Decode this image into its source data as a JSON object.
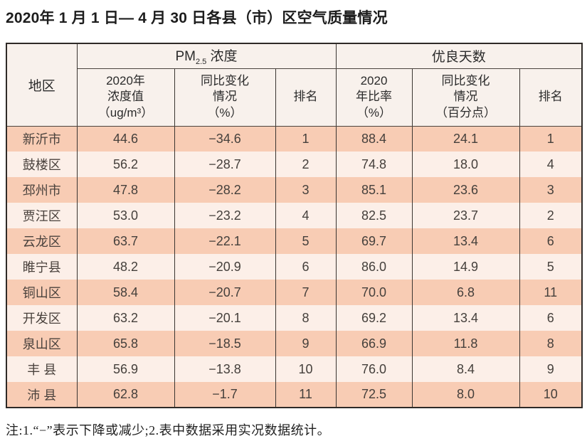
{
  "page": {
    "title": "2020年 1 月 1 日— 4 月 30 日各县（市）区空气质量情况",
    "note": "注:1.“−”表示下降或减少;2.表中数据采用实况数据统计。"
  },
  "colors": {
    "row_odd_bg": "#f8ccb4",
    "row_even_bg": "#fcefe8",
    "header_bg": "#f8f1ec",
    "border": "#3a3531",
    "text": "#45403c"
  },
  "table": {
    "header": {
      "region": "地区",
      "pm25_group": {
        "prefix": "PM",
        "sub": "2.5",
        "suffix": " 浓度"
      },
      "good_days_group": "优良天数",
      "pm25_value": "2020年\n浓度值\n（ug/m³）",
      "pm25_change": "同比变化\n情况\n（%）",
      "pm25_rank": "排名",
      "good_ratio": "2020\n年比率\n（%）",
      "good_change": "同比变化\n情况\n（百分点）",
      "good_rank": "排名"
    },
    "rows": [
      {
        "region": "新沂市",
        "pm25_value": "44.6",
        "pm25_change": "−34.6",
        "pm25_rank": "1",
        "good_ratio": "88.4",
        "good_change": "24.1",
        "good_rank": "1"
      },
      {
        "region": "鼓楼区",
        "pm25_value": "56.2",
        "pm25_change": "−28.7",
        "pm25_rank": "2",
        "good_ratio": "74.8",
        "good_change": "18.0",
        "good_rank": "4"
      },
      {
        "region": "邳州市",
        "pm25_value": "47.8",
        "pm25_change": "−28.2",
        "pm25_rank": "3",
        "good_ratio": "85.1",
        "good_change": "23.6",
        "good_rank": "3"
      },
      {
        "region": "贾汪区",
        "pm25_value": "53.0",
        "pm25_change": "−23.2",
        "pm25_rank": "4",
        "good_ratio": "82.5",
        "good_change": "23.7",
        "good_rank": "2"
      },
      {
        "region": "云龙区",
        "pm25_value": "63.7",
        "pm25_change": "−22.1",
        "pm25_rank": "5",
        "good_ratio": "69.7",
        "good_change": "13.4",
        "good_rank": "6"
      },
      {
        "region": "睢宁县",
        "pm25_value": "48.2",
        "pm25_change": "−20.9",
        "pm25_rank": "6",
        "good_ratio": "86.0",
        "good_change": "14.9",
        "good_rank": "5"
      },
      {
        "region": "铜山区",
        "pm25_value": "58.4",
        "pm25_change": "−20.7",
        "pm25_rank": "7",
        "good_ratio": "70.0",
        "good_change": "6.8",
        "good_rank": "11"
      },
      {
        "region": "开发区",
        "pm25_value": "63.2",
        "pm25_change": "−20.1",
        "pm25_rank": "8",
        "good_ratio": "69.2",
        "good_change": "13.4",
        "good_rank": "6"
      },
      {
        "region": "泉山区",
        "pm25_value": "65.8",
        "pm25_change": "−18.5",
        "pm25_rank": "9",
        "good_ratio": "66.9",
        "good_change": "11.8",
        "good_rank": "8"
      },
      {
        "region": "丰 县",
        "pm25_value": "56.9",
        "pm25_change": "−13.8",
        "pm25_rank": "10",
        "good_ratio": "76.0",
        "good_change": "8.4",
        "good_rank": "9"
      },
      {
        "region": "沛 县",
        "pm25_value": "62.8",
        "pm25_change": "−1.7",
        "pm25_rank": "11",
        "good_ratio": "72.5",
        "good_change": "8.0",
        "good_rank": "10"
      }
    ]
  }
}
